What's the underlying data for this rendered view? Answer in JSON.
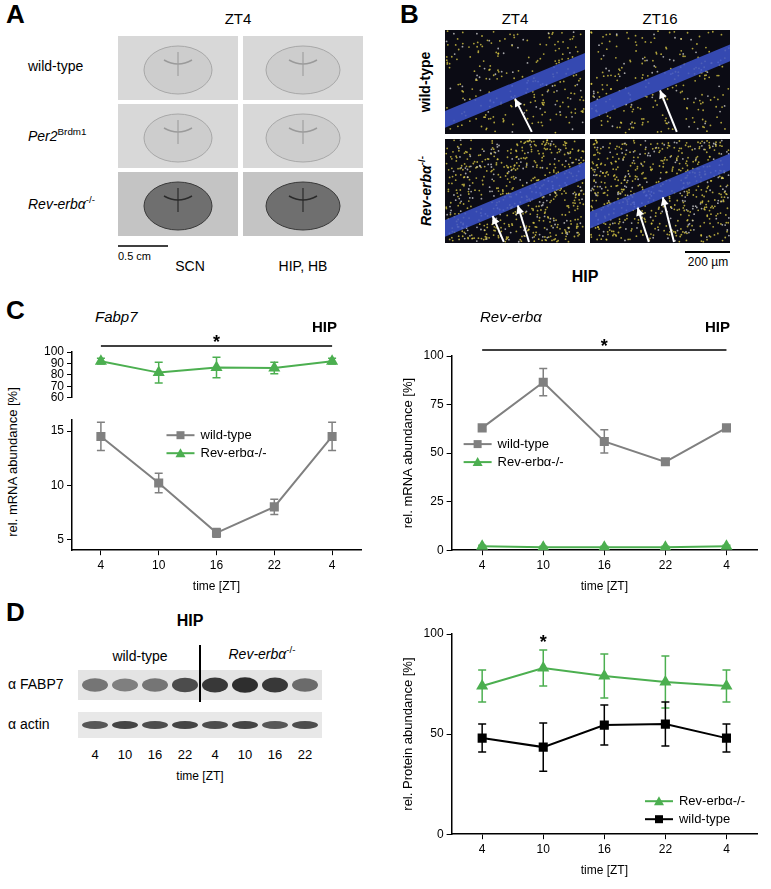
{
  "panel_labels": [
    "A",
    "B",
    "C",
    "D"
  ],
  "panel_A": {
    "title": "ZT4",
    "rows": [
      {
        "text": "wild-type"
      },
      {
        "text": "Per2",
        "sup": "Brdm1"
      },
      {
        "text": "Rev-erbα",
        "sup": "-/-"
      }
    ],
    "columns": [
      "SCN",
      "HIP, HB"
    ],
    "scale_bar": "0.5 cm"
  },
  "panel_B": {
    "columns": [
      "ZT4",
      "ZT16"
    ],
    "rows": [
      {
        "text": "wild-type"
      },
      {
        "text": "Rev-erbα",
        "sup": "-/-"
      }
    ],
    "scale_bar": "200 µm",
    "region": "HIP"
  },
  "panel_D_blot": {
    "region": "HIP",
    "groups": [
      {
        "text": "wild-type"
      },
      {
        "text": "Rev-erbα",
        "sup": "-/-"
      }
    ],
    "rows": [
      "α FABP7",
      "α actin"
    ],
    "lanes": [
      "4",
      "10",
      "16",
      "22",
      "4",
      "10",
      "16",
      "22"
    ],
    "x_label": "time [ZT]"
  },
  "chart_data": [
    {
      "type": "line",
      "title": "Fabp7",
      "subtitle": "HIP",
      "x_label": "time [ZT]",
      "y_label": "rel. mRNA abundance [%]",
      "categories": [
        "4",
        "10",
        "16",
        "22",
        "4"
      ],
      "series": [
        {
          "name": "wild-type",
          "color": "#808080",
          "marker": "square",
          "line_style": "solid",
          "values": [
            14.5,
            10.2,
            5.6,
            8.0,
            14.5
          ],
          "errors": [
            1.3,
            0.9,
            0.4,
            0.7,
            1.3
          ]
        },
        {
          "name": "Rev-erbα-/-",
          "color": "#4caf50",
          "marker": "triangle",
          "line_style": "solid",
          "axis": "y2",
          "values": [
            92,
            82,
            86.5,
            86,
            92
          ],
          "errors": [
            2.5,
            9,
            9,
            5,
            2.5
          ]
        }
      ],
      "ylim": [
        4,
        16
      ],
      "yticks": [
        5,
        10,
        15
      ],
      "y2lim": [
        60,
        100
      ],
      "y2ticks": [
        60,
        70,
        80,
        90,
        100
      ],
      "grid": false,
      "legend": "upper center",
      "annotations": [
        {
          "text": "*",
          "from": 0,
          "to": 4
        }
      ]
    },
    {
      "type": "line",
      "title": "Rev-erbα",
      "subtitle": "HIP",
      "x_label": "time [ZT]",
      "y_label": "rel. mRNA abundance [%]",
      "categories": [
        "4",
        "10",
        "16",
        "22",
        "4"
      ],
      "series": [
        {
          "name": "wild-type",
          "color": "#808080",
          "marker": "square",
          "line_style": "solid",
          "values": [
            63,
            86.5,
            56,
            45.5,
            63
          ],
          "errors": [
            1,
            7,
            6,
            1,
            1
          ]
        },
        {
          "name": "Rev-erbα-/-",
          "color": "#4caf50",
          "marker": "triangle",
          "line_style": "solid",
          "values": [
            2,
            1.5,
            1.5,
            1.5,
            2
          ],
          "errors": [
            0.5,
            0.5,
            0.5,
            0.5,
            0.5
          ]
        }
      ],
      "ylim": [
        0,
        100
      ],
      "yticks": [
        0,
        25,
        50,
        75,
        100
      ],
      "grid": false,
      "legend": "center left",
      "annotations": [
        {
          "text": "*",
          "from": 0,
          "to": 4
        }
      ]
    },
    {
      "type": "line",
      "x_label": "time [ZT]",
      "y_label": "rel. Protein abundance [%]",
      "categories": [
        "4",
        "10",
        "16",
        "22",
        "4"
      ],
      "series": [
        {
          "name": "Rev-erbα-/-",
          "color": "#4caf50",
          "marker": "triangle",
          "line_style": "solid",
          "values": [
            74,
            83,
            79,
            76,
            74
          ],
          "errors": [
            8,
            9,
            11,
            13,
            8
          ]
        },
        {
          "name": "wild-type",
          "color": "#000000",
          "marker": "square",
          "line_style": "solid",
          "values": [
            48,
            43.5,
            54.5,
            55,
            48
          ],
          "errors": [
            7,
            12,
            10,
            11,
            7
          ]
        }
      ],
      "ylim": [
        0,
        100
      ],
      "yticks": [
        0,
        50,
        100
      ],
      "grid": false,
      "legend": "lower right",
      "annotations": [
        {
          "text": "*",
          "category": "10"
        }
      ]
    }
  ]
}
